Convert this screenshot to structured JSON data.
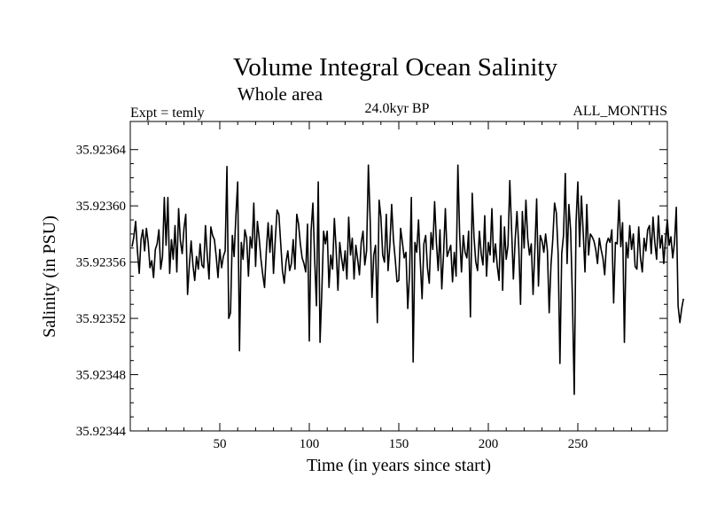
{
  "chart_data": {
    "type": "line",
    "title": "Volume Integral Ocean Salinity",
    "subtitle": "Whole area",
    "annotations": {
      "experiment": "Expt = temly",
      "period": "24.0kyr BP",
      "months": "ALL_MONTHS"
    },
    "xlabel": "Time (in years since start)",
    "ylabel": "Salinity (in PSU)",
    "xlim": [
      0,
      300
    ],
    "ylim": [
      35.92344,
      35.92366
    ],
    "x_ticks": [
      50,
      100,
      150,
      200,
      250
    ],
    "x_tick_labels": [
      "50",
      "100",
      "150",
      "200",
      "250"
    ],
    "y_ticks": [
      35.92344,
      35.92348,
      35.92352,
      35.92356,
      35.9236,
      35.92364
    ],
    "y_tick_labels": [
      "35.92344",
      "35.92348",
      "35.92352",
      "35.92356",
      "35.92360",
      "35.92364"
    ],
    "grid": false,
    "series": [
      {
        "name": "Salinity",
        "x_start": 1,
        "x_step": 1,
        "values": [
          35.923571,
          35.923578,
          35.923589,
          35.923568,
          35.923552,
          35.923576,
          35.923583,
          35.923568,
          35.923584,
          35.923574,
          35.923556,
          35.923561,
          35.923549,
          35.923569,
          35.923573,
          35.923583,
          35.923555,
          35.923564,
          35.923606,
          35.923572,
          35.923606,
          35.923552,
          35.923576,
          35.923562,
          35.923586,
          35.923553,
          35.923598,
          35.923575,
          35.923566,
          35.923584,
          35.923594,
          35.923537,
          35.923558,
          35.923575,
          35.923558,
          35.923547,
          35.923564,
          35.923555,
          35.923573,
          35.923558,
          35.923556,
          35.923586,
          35.923565,
          35.923548,
          35.923585,
          35.923579,
          35.923576,
          35.923564,
          35.923549,
          35.923569,
          35.923556,
          35.923564,
          35.923568,
          35.923628,
          35.92352,
          35.923524,
          35.923579,
          35.923564,
          35.923593,
          35.923617,
          35.923497,
          35.923574,
          35.923562,
          35.923583,
          35.923577,
          35.92355,
          35.923578,
          35.92357,
          35.923602,
          35.923557,
          35.923589,
          35.923577,
          35.923562,
          35.923551,
          35.923542,
          35.923568,
          35.923588,
          35.923567,
          35.923586,
          35.923552,
          35.923576,
          35.923597,
          35.923594,
          35.923574,
          35.923554,
          35.923545,
          35.92356,
          35.923568,
          35.923554,
          35.923559,
          35.923576,
          35.923555,
          35.923594,
          35.923587,
          35.923573,
          35.923563,
          35.923559,
          35.923553,
          35.923587,
          35.923504,
          35.923582,
          35.923602,
          35.923562,
          35.923529,
          35.923617,
          35.923503,
          35.923539,
          35.923582,
          35.923573,
          35.923582,
          35.923542,
          35.923565,
          35.923555,
          35.923591,
          35.923569,
          35.92354,
          35.923574,
          35.923563,
          35.923554,
          35.923568,
          35.923548,
          35.923592,
          35.923565,
          35.923577,
          35.923548,
          35.923572,
          35.923562,
          35.923551,
          35.923574,
          35.923582,
          35.923558,
          35.923568,
          35.923629,
          35.92359,
          35.923535,
          35.923565,
          35.923572,
          35.923517,
          35.923604,
          35.923592,
          35.923565,
          35.92356,
          35.923594,
          35.923554,
          35.923572,
          35.923601,
          35.923576,
          35.923562,
          35.923546,
          35.923547,
          35.923584,
          35.923574,
          35.923563,
          35.923567,
          35.923527,
          35.923552,
          35.923606,
          35.923489,
          35.923574,
          35.923567,
          35.92359,
          35.92356,
          35.923534,
          35.923573,
          35.923579,
          35.923556,
          35.923545,
          35.923581,
          35.923569,
          35.923603,
          35.923574,
          35.923554,
          35.923583,
          35.923541,
          35.923566,
          35.923598,
          35.923564,
          35.923568,
          35.923572,
          35.923546,
          35.923567,
          35.92355,
          35.923629,
          35.923579,
          35.923553,
          35.923579,
          35.923567,
          35.923563,
          35.923582,
          35.923521,
          35.923609,
          35.923578,
          35.92356,
          35.923554,
          35.923582,
          35.923566,
          35.923558,
          35.923593,
          35.92355,
          35.923574,
          35.923565,
          35.923598,
          35.92356,
          35.923573,
          35.923557,
          35.923547,
          35.923593,
          35.92354,
          35.923585,
          35.923562,
          35.923572,
          35.923618,
          35.923583,
          35.923548,
          35.923576,
          35.923596,
          35.923571,
          35.92353,
          35.923596,
          35.92357,
          35.923604,
          35.923577,
          35.923565,
          35.923573,
          35.923537,
          35.923569,
          35.923605,
          35.923543,
          35.923579,
          35.923575,
          35.923567,
          35.92358,
          35.923568,
          35.923524,
          35.923558,
          35.923576,
          35.923602,
          35.923595,
          35.923566,
          35.923488,
          35.923566,
          35.923579,
          35.923623,
          35.923559,
          35.923601,
          35.923582,
          35.923533,
          35.923466,
          35.923588,
          35.923617,
          35.923571,
          35.923607,
          35.923581,
          35.923553,
          35.923601,
          35.923565,
          35.92358,
          35.923578,
          35.923575,
          35.923569,
          35.923559,
          35.923577,
          35.923569,
          35.923563,
          35.923551,
          35.923573,
          35.923577,
          35.923574,
          35.923583,
          35.923531,
          35.923574,
          35.923573,
          35.923604,
          35.923571,
          35.923588,
          35.923503,
          35.923574,
          35.923563,
          35.923586,
          35.923569,
          35.92358,
          35.923557,
          35.923555,
          35.923585,
          35.923563,
          35.923553,
          35.923577,
          35.923568,
          35.923583,
          35.923586,
          35.923566,
          35.923592,
          35.923574,
          35.923562,
          35.923593,
          35.92357,
          35.923579,
          35.923559,
          35.923577,
          35.92359,
          35.923572,
          35.923578,
          35.923563,
          35.923574,
          35.923599,
          35.923529,
          35.923517,
          35.923527,
          35.923534
        ]
      }
    ]
  }
}
